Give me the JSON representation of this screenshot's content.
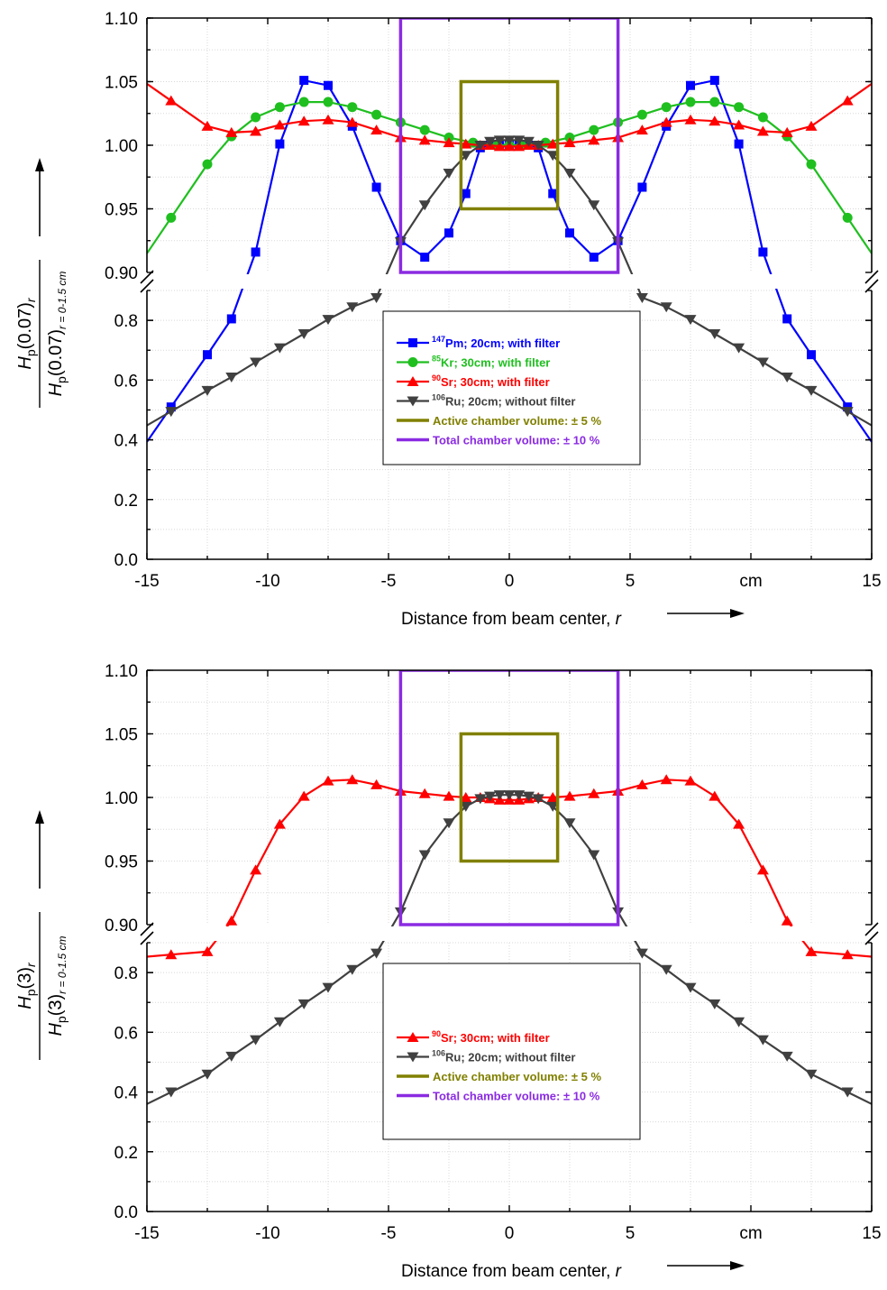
{
  "chart_data": [
    {
      "type": "line",
      "xlabel_text": "Distance from beam center, ",
      "xlabel_var": "r",
      "x_unit_label": "cm",
      "xlim": [
        -15,
        15
      ],
      "x_ticks": [
        "-15",
        "-10",
        "-5",
        "0",
        "5",
        "15"
      ],
      "ylim_lower": [
        0.0,
        0.9
      ],
      "ylim_upper": [
        0.9,
        1.1
      ],
      "y_ticks_lower": [
        "0.0",
        "0.2",
        "0.4",
        "0.6",
        "0.8"
      ],
      "y_ticks_upper": [
        "0.90",
        "0.95",
        "1.00",
        "1.05",
        "1.10"
      ],
      "ylabel": {
        "num_H": "H",
        "num_sub": "p",
        "num_arg": "(0.07)",
        "num_r": "r",
        "den_H": "H",
        "den_sub": "p",
        "den_arg": "(0.07)",
        "den_r": "r = 0-1.5 cm"
      },
      "grid": true,
      "legend_position": "center",
      "series": [
        {
          "name": "147Pm; 20cm; with filter",
          "sup": "147",
          "name_rest": "Pm; 20cm; with filter",
          "color": "#0000ff",
          "marker": "square",
          "x": [
            -14,
            -12.5,
            -11.5,
            -10.5,
            -9.5,
            -8.5,
            -7.5,
            -6.5,
            -5.5,
            -4.5,
            -3.5,
            -2.5,
            -1.8,
            -1.2,
            -0.8,
            -0.4,
            0,
            0.4,
            0.8,
            1.2,
            1.8,
            2.5,
            3.5,
            4.5,
            5.5,
            6.5,
            7.5,
            8.5,
            9.5,
            10.5,
            11.5,
            12.5,
            14
          ],
          "y": [
            0.51,
            0.685,
            0.805,
            0.916,
            1.001,
            1.051,
            1.047,
            1.015,
            0.967,
            0.925,
            0.912,
            0.931,
            0.962,
            0.998,
            1.0,
            1.0,
            1.0,
            1.0,
            1.0,
            0.998,
            0.962,
            0.931,
            0.912,
            0.925,
            0.967,
            1.015,
            1.047,
            1.051,
            1.001,
            0.916,
            0.805,
            0.685,
            0.51
          ]
        },
        {
          "name": "85Kr; 30cm; with filter",
          "sup": "85",
          "name_rest": "Kr; 30cm; with filter",
          "color": "#1fbf1f",
          "marker": "circle",
          "x": [
            -14,
            -12.5,
            -11.5,
            -10.5,
            -9.5,
            -8.5,
            -7.5,
            -6.5,
            -5.5,
            -4.5,
            -3.5,
            -2.5,
            -1.5,
            -0.5,
            0,
            0.5,
            1.5,
            2.5,
            3.5,
            4.5,
            5.5,
            6.5,
            7.5,
            8.5,
            9.5,
            10.5,
            11.5,
            12.5,
            14
          ],
          "y": [
            0.943,
            0.985,
            1.007,
            1.022,
            1.03,
            1.034,
            1.034,
            1.03,
            1.024,
            1.018,
            1.012,
            1.006,
            1.002,
            1.0,
            1.0,
            1.0,
            1.002,
            1.006,
            1.012,
            1.018,
            1.024,
            1.03,
            1.034,
            1.034,
            1.03,
            1.022,
            1.007,
            0.985,
            0.943
          ]
        },
        {
          "name": "90Sr; 30cm; with filter",
          "sup": "90",
          "name_rest": "Sr; 30cm; with filter",
          "color": "#ff0000",
          "marker": "triangle-up",
          "x": [
            -14,
            -12.5,
            -11.5,
            -10.5,
            -9.5,
            -8.5,
            -7.5,
            -6.5,
            -5.5,
            -4.5,
            -3.5,
            -2.5,
            -1.8,
            -1.2,
            -0.8,
            -0.4,
            0,
            0.4,
            0.8,
            1.2,
            1.8,
            2.5,
            3.5,
            4.5,
            5.5,
            6.5,
            7.5,
            8.5,
            9.5,
            10.5,
            11.5,
            12.5,
            14
          ],
          "y": [
            1.035,
            1.015,
            1.01,
            1.011,
            1.016,
            1.019,
            1.02,
            1.018,
            1.012,
            1.006,
            1.004,
            1.002,
            1.001,
            1.0,
            1.0,
            0.999,
            0.999,
            0.999,
            1.0,
            1.0,
            1.001,
            1.002,
            1.004,
            1.006,
            1.012,
            1.018,
            1.02,
            1.019,
            1.016,
            1.011,
            1.01,
            1.015,
            1.035
          ]
        },
        {
          "name": "106Ru; 20cm; without filter",
          "sup": "106",
          "name_rest": "Ru; 20cm; without filter",
          "color": "#404040",
          "marker": "triangle-down",
          "x": [
            -14,
            -12.5,
            -11.5,
            -10.5,
            -9.5,
            -8.5,
            -7.5,
            -6.5,
            -5.5,
            -4.5,
            -3.5,
            -2.5,
            -1.8,
            -1.2,
            -0.8,
            -0.4,
            0,
            0.4,
            0.8,
            1.2,
            1.8,
            2.5,
            3.5,
            4.5,
            5.5,
            6.5,
            7.5,
            8.5,
            9.5,
            10.5,
            11.5,
            12.5,
            14
          ],
          "y": [
            0.495,
            0.565,
            0.61,
            0.66,
            0.708,
            0.755,
            0.803,
            0.845,
            0.876,
            0.924,
            0.953,
            0.978,
            0.992,
            1.0,
            1.003,
            1.004,
            1.004,
            1.004,
            1.003,
            1.0,
            0.992,
            0.978,
            0.953,
            0.924,
            0.876,
            0.845,
            0.803,
            0.755,
            0.708,
            0.66,
            0.61,
            0.565,
            0.495
          ]
        }
      ],
      "rects": [
        {
          "name": "Active chamber volume: ± 5 %",
          "color": "#808000",
          "x": [
            -2,
            2
          ],
          "y": [
            0.95,
            1.05
          ]
        },
        {
          "name": "Total chamber volume: ± 10 %",
          "color": "#8b2be2",
          "x": [
            -4.5,
            4.5
          ],
          "y": [
            0.9,
            1.1
          ]
        }
      ]
    },
    {
      "type": "line",
      "xlabel_text": "Distance from beam center, ",
      "xlabel_var": "r",
      "x_unit_label": "cm",
      "xlim": [
        -15,
        15
      ],
      "x_ticks": [
        "-15",
        "-10",
        "-5",
        "0",
        "5",
        "15"
      ],
      "ylim_lower": [
        0.0,
        0.9
      ],
      "ylim_upper": [
        0.9,
        1.1
      ],
      "y_ticks_lower": [
        "0.0",
        "0.2",
        "0.4",
        "0.6",
        "0.8"
      ],
      "y_ticks_upper": [
        "0.90",
        "0.95",
        "1.00",
        "1.05",
        "1.10"
      ],
      "ylabel": {
        "num_H": "H",
        "num_sub": "p",
        "num_arg": "(3)",
        "num_r": "r",
        "den_H": "H",
        "den_sub": "p",
        "den_arg": "(3)",
        "den_r": "r = 0-1.5 cm"
      },
      "grid": true,
      "legend_position": "center",
      "series": [
        {
          "name": "90Sr; 30cm; with filter",
          "sup": "90",
          "name_rest": "Sr; 30cm; with filter",
          "color": "#ff0000",
          "marker": "triangle-up",
          "x": [
            -14,
            -12.5,
            -11.5,
            -10.5,
            -9.5,
            -8.5,
            -7.5,
            -6.5,
            -5.5,
            -4.5,
            -3.5,
            -2.5,
            -1.8,
            -1.2,
            -0.8,
            -0.4,
            0,
            0.4,
            0.8,
            1.2,
            1.8,
            2.5,
            3.5,
            4.5,
            5.5,
            6.5,
            7.5,
            8.5,
            9.5,
            10.5,
            11.5,
            12.5,
            14
          ],
          "y": [
            0.86,
            0.87,
            0.903,
            0.943,
            0.979,
            1.001,
            1.013,
            1.014,
            1.01,
            1.005,
            1.003,
            1.001,
            1.0,
            1.0,
            0.999,
            0.998,
            0.998,
            0.998,
            0.999,
            1.0,
            1.0,
            1.001,
            1.003,
            1.005,
            1.01,
            1.014,
            1.013,
            1.001,
            0.979,
            0.943,
            0.903,
            0.87,
            0.86
          ]
        },
        {
          "name": "106Ru; 20cm; without filter",
          "sup": "106",
          "name_rest": "Ru; 20cm; without filter",
          "color": "#404040",
          "marker": "triangle-down",
          "x": [
            -14,
            -12.5,
            -11.5,
            -10.5,
            -9.5,
            -8.5,
            -7.5,
            -6.5,
            -5.5,
            -4.5,
            -3.5,
            -2.5,
            -1.8,
            -1.2,
            -0.8,
            -0.4,
            0,
            0.4,
            0.8,
            1.2,
            1.8,
            2.5,
            3.5,
            4.5,
            5.5,
            6.5,
            7.5,
            8.5,
            9.5,
            10.5,
            11.5,
            12.5,
            14
          ],
          "y": [
            0.4,
            0.46,
            0.52,
            0.575,
            0.635,
            0.695,
            0.75,
            0.81,
            0.865,
            0.91,
            0.955,
            0.98,
            0.993,
            0.999,
            1.001,
            1.002,
            1.002,
            1.002,
            1.001,
            0.999,
            0.993,
            0.98,
            0.955,
            0.91,
            0.865,
            0.81,
            0.75,
            0.695,
            0.635,
            0.575,
            0.52,
            0.46,
            0.4
          ]
        }
      ],
      "rects": [
        {
          "name": "Active chamber volume: ± 5 %",
          "color": "#808000",
          "x": [
            -2,
            2
          ],
          "y": [
            0.95,
            1.05
          ]
        },
        {
          "name": "Total chamber volume: ± 10 %",
          "color": "#8b2be2",
          "x": [
            -4.5,
            4.5
          ],
          "y": [
            0.9,
            1.1
          ]
        }
      ]
    }
  ]
}
